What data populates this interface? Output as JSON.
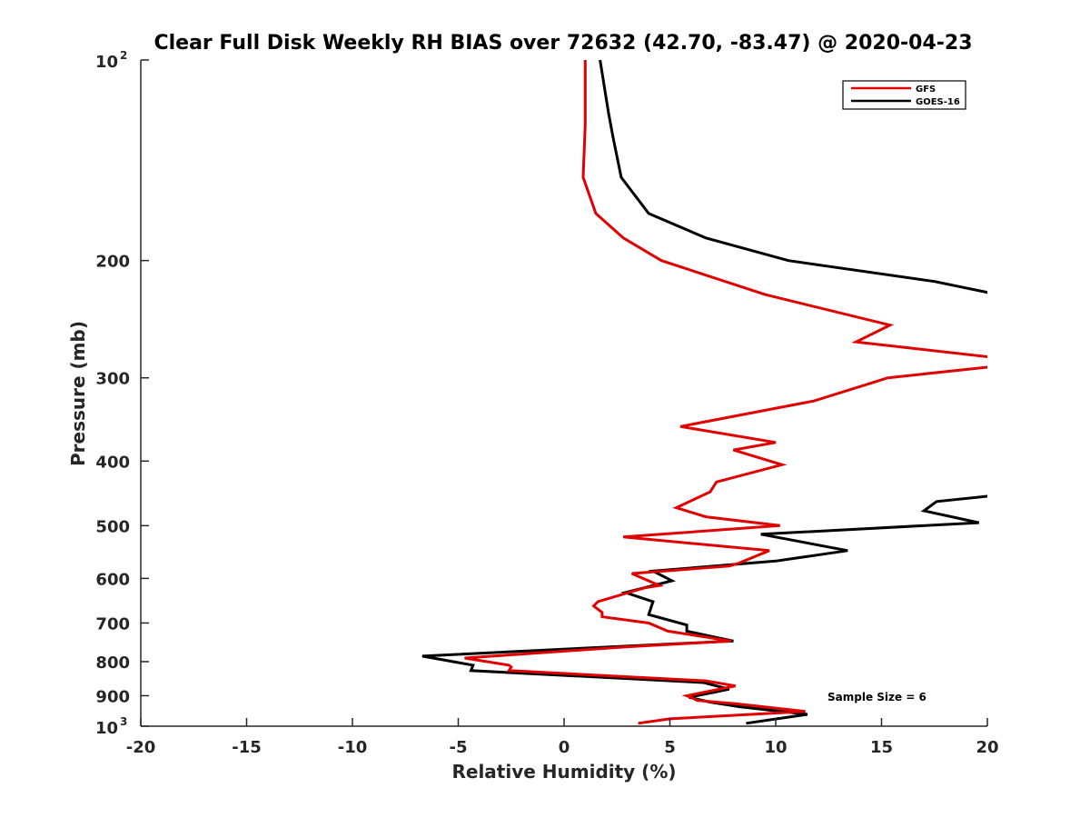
{
  "chart_data": {
    "type": "line",
    "title": "Clear Full Disk Weekly RH BIAS over 72632 (42.70, -83.47) @ 2020-04-23",
    "xlabel": "Relative Humidity (%)",
    "ylabel": "Pressure (mb)",
    "xlim": [
      -20,
      20
    ],
    "ylim": [
      100,
      1000
    ],
    "y_scale": "log",
    "y_reversed": true,
    "x_ticks": [
      "-20",
      "-15",
      "-10",
      "-5",
      "0",
      "5",
      "10",
      "15",
      "20"
    ],
    "y_ticks": [
      {
        "value": 100,
        "base": "10",
        "exp": "2"
      },
      {
        "value": 200,
        "base": "200",
        "exp": ""
      },
      {
        "value": 300,
        "base": "300",
        "exp": ""
      },
      {
        "value": 400,
        "base": "400",
        "exp": ""
      },
      {
        "value": 500,
        "base": "500",
        "exp": ""
      },
      {
        "value": 600,
        "base": "600",
        "exp": ""
      },
      {
        "value": 700,
        "base": "700",
        "exp": ""
      },
      {
        "value": 800,
        "base": "800",
        "exp": ""
      },
      {
        "value": 900,
        "base": "900",
        "exp": ""
      },
      {
        "value": 1000,
        "base": "10",
        "exp": "3"
      }
    ],
    "grid": false,
    "legend_position": "top-right",
    "annotation": "Sample Size = 6",
    "series": [
      {
        "name": "GFS",
        "color": "#e00000",
        "points": [
          [
            1.0,
            100
          ],
          [
            1.0,
            125
          ],
          [
            0.9,
            150
          ],
          [
            1.5,
            170
          ],
          [
            2.8,
            185
          ],
          [
            4.6,
            200
          ],
          [
            9.5,
            225
          ],
          [
            15.4,
            250
          ],
          [
            13.8,
            265
          ],
          [
            20.5,
            280
          ],
          [
            20.5,
            288
          ],
          [
            15.3,
            300
          ],
          [
            11.8,
            325
          ],
          [
            5.5,
            355
          ],
          [
            10.0,
            375
          ],
          [
            8.0,
            385
          ],
          [
            10.3,
            405
          ],
          [
            7.2,
            430
          ],
          [
            6.9,
            445
          ],
          [
            5.3,
            470
          ],
          [
            6.7,
            485
          ],
          [
            10.2,
            500
          ],
          [
            2.8,
            520
          ],
          [
            9.7,
            545
          ],
          [
            8.2,
            570
          ],
          [
            7.8,
            575
          ],
          [
            3.2,
            590
          ],
          [
            4.5,
            615
          ],
          [
            3.8,
            620
          ],
          [
            1.6,
            650
          ],
          [
            1.4,
            660
          ],
          [
            1.8,
            675
          ],
          [
            1.8,
            685
          ],
          [
            4.0,
            700
          ],
          [
            4.9,
            720
          ],
          [
            7.9,
            745
          ],
          [
            3.0,
            760
          ],
          [
            -4.7,
            790
          ],
          [
            -2.6,
            810
          ],
          [
            -2.5,
            815
          ],
          [
            -2.6,
            825
          ],
          [
            6.7,
            855
          ],
          [
            8.1,
            870
          ],
          [
            5.8,
            900
          ],
          [
            6.0,
            905
          ],
          [
            6.3,
            915
          ],
          [
            8.1,
            925
          ],
          [
            11.4,
            950
          ],
          [
            5.0,
            975
          ],
          [
            3.5,
            990
          ]
        ]
      },
      {
        "name": "GOES-16",
        "color": "#000000",
        "points": [
          [
            1.7,
            100
          ],
          [
            2.1,
            120
          ],
          [
            2.3,
            130
          ],
          [
            2.7,
            150
          ],
          [
            4.0,
            170
          ],
          [
            6.7,
            185
          ],
          [
            10.6,
            200
          ],
          [
            17.5,
            215
          ],
          [
            20.5,
            225
          ]
        ],
        "points2": [
          [
            20.5,
            450
          ],
          [
            17.6,
            460
          ],
          [
            17.0,
            475
          ],
          [
            19.6,
            495
          ],
          [
            9.3,
            515
          ],
          [
            13.4,
            545
          ],
          [
            10.0,
            565
          ],
          [
            4.2,
            585
          ],
          [
            5.1,
            605
          ],
          [
            2.9,
            630
          ],
          [
            4.2,
            650
          ],
          [
            4.1,
            665
          ],
          [
            4.0,
            680
          ],
          [
            5.8,
            705
          ],
          [
            5.8,
            720
          ],
          [
            8.0,
            745
          ],
          [
            2.3,
            760
          ],
          [
            -6.7,
            785
          ],
          [
            -4.3,
            810
          ],
          [
            -4.4,
            825
          ],
          [
            6.6,
            860
          ],
          [
            7.8,
            880
          ],
          [
            5.9,
            905
          ],
          [
            6.9,
            920
          ],
          [
            8.3,
            935
          ],
          [
            11.5,
            960
          ],
          [
            8.6,
            990
          ]
        ]
      }
    ]
  }
}
